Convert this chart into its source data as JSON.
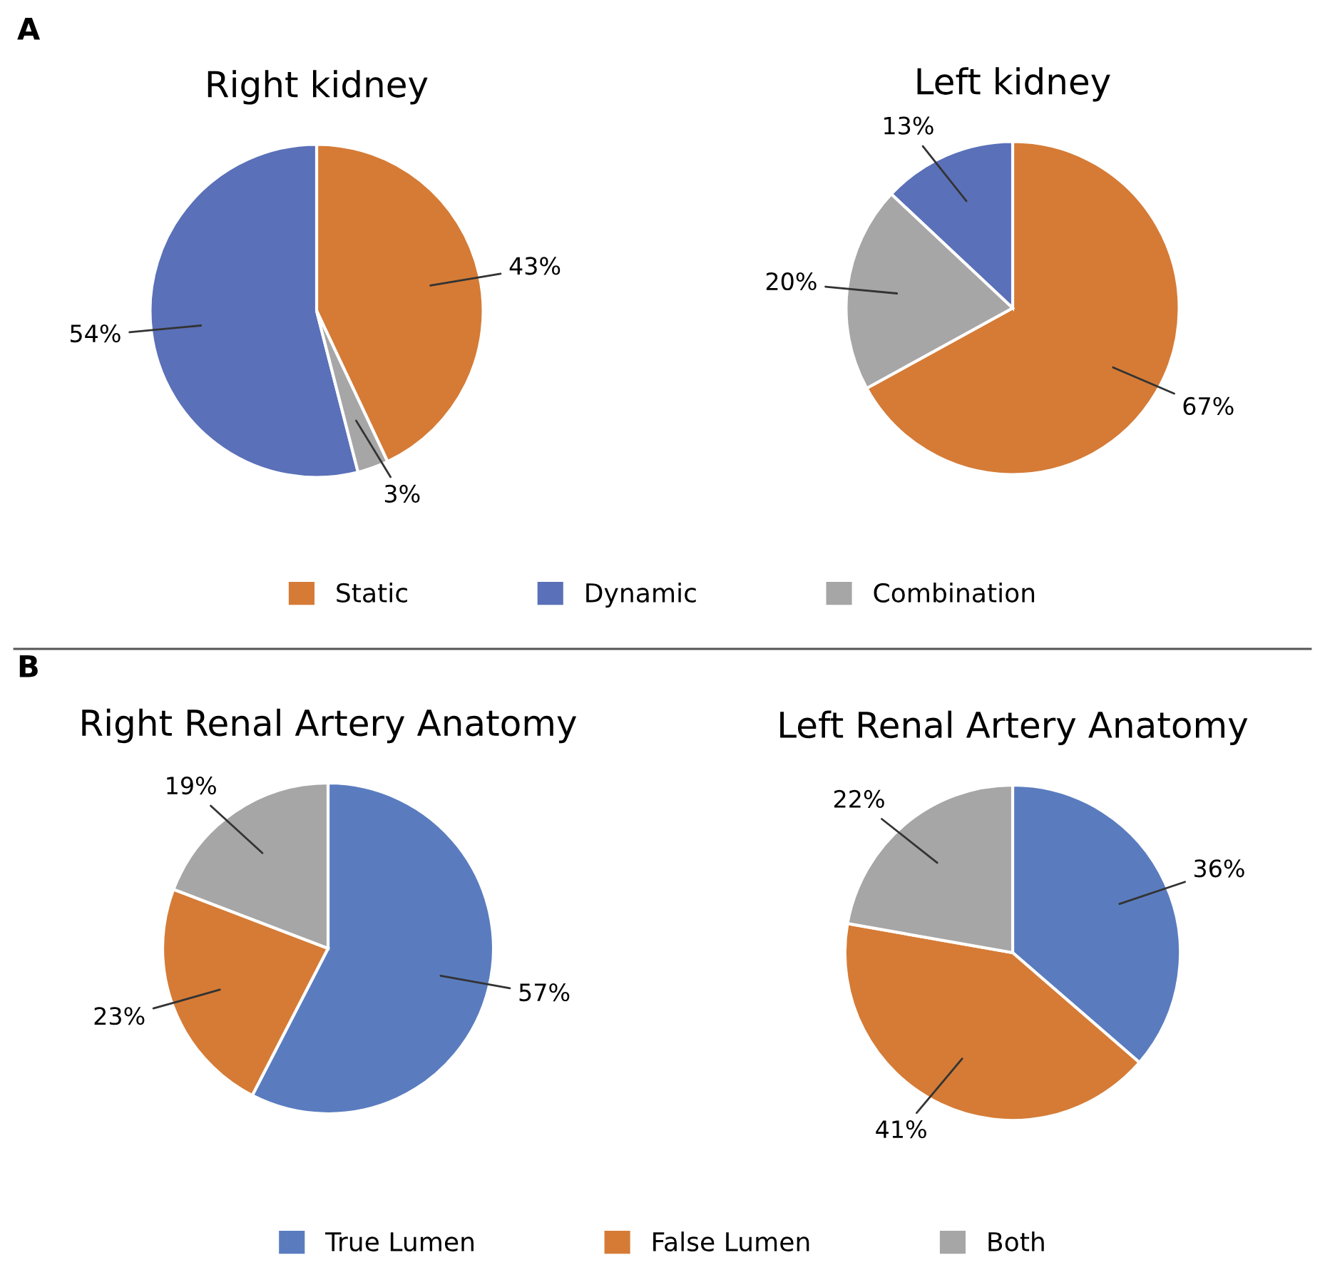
{
  "chart_data": [
    {
      "type": "pie",
      "title": "Right kidney",
      "categories": [
        "Static",
        "Dynamic",
        "Combination"
      ],
      "values": [
        43,
        54,
        3
      ],
      "colors": [
        "#d57b36",
        "#5a70b8",
        "#a6a6a6"
      ],
      "value_labels": [
        "43%",
        "54%",
        "3%"
      ],
      "legend": "bottom",
      "annotations": [
        "A"
      ]
    },
    {
      "type": "pie",
      "title": "Left kidney",
      "categories": [
        null,
        null,
        null
      ],
      "values": [
        67,
        13,
        20
      ],
      "colors": [
        "#d57b36",
        "#5a70b8",
        "#a6a6a6"
      ],
      "value_labels": [
        "67%",
        "13%",
        "20%"
      ]
    },
    {
      "type": "pie",
      "title": "Right Renal Artery Anatomy",
      "categories": [
        "True Lumen",
        "False Lumen",
        "Both"
      ],
      "values": [
        57,
        23,
        19
      ],
      "colors": [
        "#5a7cbf",
        "#d57b36",
        "#a6a6a6"
      ],
      "value_labels": [
        "57%",
        "23%",
        "19%"
      ],
      "legend": "bottom",
      "annotations": [
        "B"
      ]
    },
    {
      "type": "pie",
      "title": "Left Renal Artery Anatomy",
      "categories": [
        null,
        null,
        null
      ],
      "values": [
        36,
        41,
        22
      ],
      "colors": [
        "#5a7cbf",
        "#d57b36",
        "#a6a6a6"
      ],
      "value_labels": [
        "36%",
        "41%",
        "22%"
      ]
    }
  ]
}
